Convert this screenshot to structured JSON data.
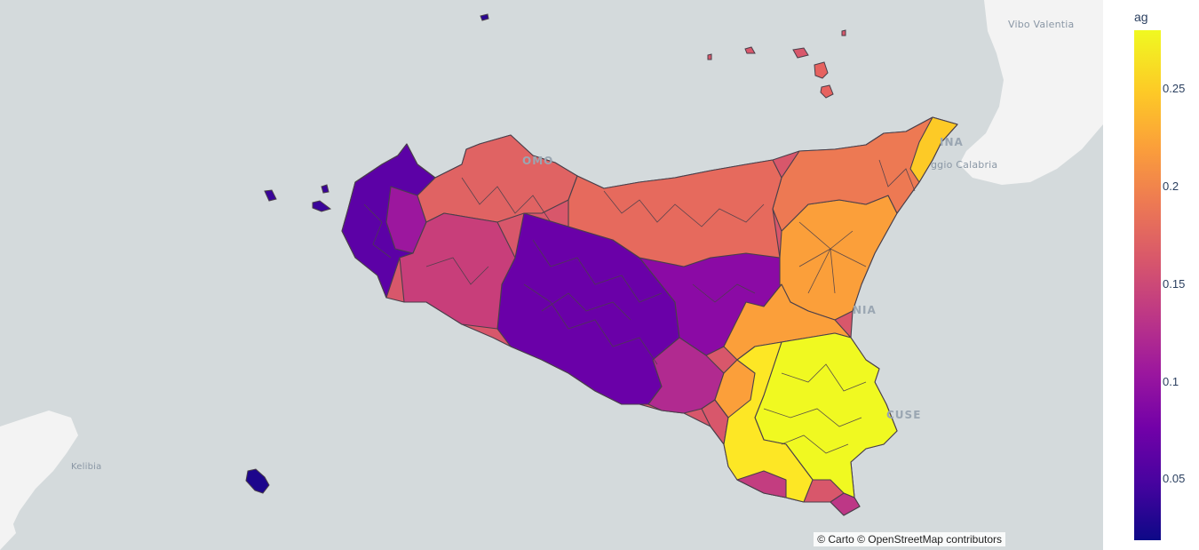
{
  "map": {
    "places": {
      "vibo_valentia": "Vibo Valentia",
      "reggio_calabria": "ggio Calabria",
      "messina": "INA",
      "palermo": "OMO",
      "catania": "NIA",
      "syracuse": "CUSE",
      "kelibia": "Kelibia"
    },
    "attribution": "© Carto © OpenStreetMap contributors",
    "land_color": "#f3f3f3",
    "water_color": "#d4dadc"
  },
  "colorbar": {
    "title": "ag",
    "ticks": [
      "0.25",
      "0.2",
      "0.15",
      "0.1",
      "0.05"
    ],
    "colorscale": "plasma",
    "range": [
      0.015,
      0.28
    ]
  }
}
